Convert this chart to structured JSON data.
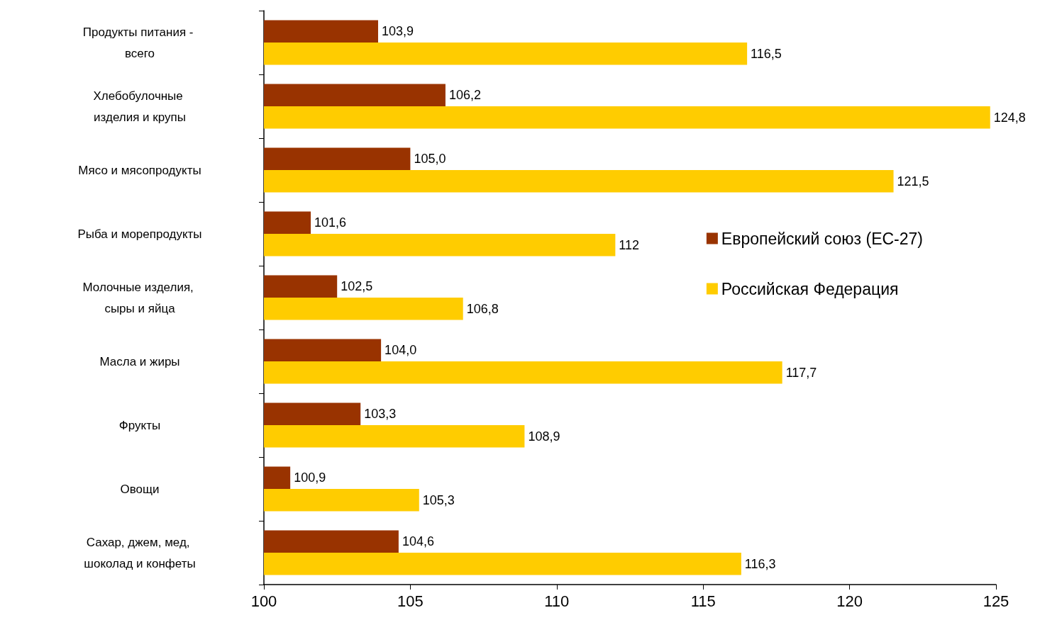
{
  "chart_data": {
    "type": "bar",
    "orientation": "horizontal",
    "categories": [
      "Продукты питания - всего",
      "Хлебобулочные изделия и крупы",
      "Мясо и мясопродукты",
      "Рыба и морепродукты",
      "Молочные изделия, сыры и яйца",
      "Масла и жиры",
      "Фрукты",
      "Овощи",
      "Сахар, джем, мед, шоколад и конфеты"
    ],
    "series": [
      {
        "name": "Европейский союз (ЕС-27)",
        "color": "#993300",
        "values": [
          103.9,
          106.2,
          105.0,
          101.6,
          102.5,
          104.0,
          103.3,
          100.9,
          104.6
        ],
        "value_labels": [
          "103,9",
          "106,2",
          "105,0",
          "101,6",
          "102,5",
          "104,0",
          "103,3",
          "100,9",
          "104,6"
        ]
      },
      {
        "name": "Российская Федерация",
        "color": "#ffcc00",
        "values": [
          116.5,
          124.8,
          121.5,
          112,
          106.8,
          117.7,
          108.9,
          105.3,
          116.3
        ],
        "value_labels": [
          "116,5",
          "124,8",
          "121,5",
          "112",
          "106,8",
          "117,7",
          "108,9",
          "105,3",
          "116,3"
        ]
      }
    ],
    "xlim": [
      100,
      125
    ],
    "xticks": [
      100,
      105,
      110,
      115,
      120,
      125
    ],
    "grid": false,
    "legend": "right"
  }
}
